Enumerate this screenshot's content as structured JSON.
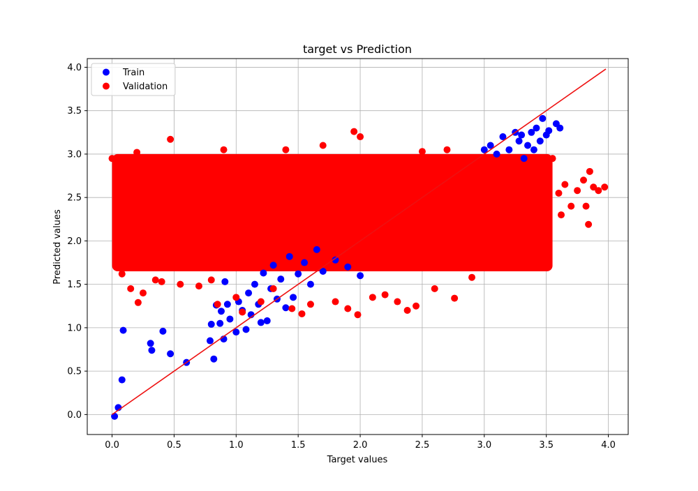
{
  "chart_data": {
    "type": "scatter",
    "title": "target vs Prediction",
    "xlabel": "Target values",
    "ylabel": "Predicted values",
    "xlim": [
      -0.2,
      4.16
    ],
    "ylim": [
      -0.23,
      4.1
    ],
    "x_ticks": [
      0.0,
      0.5,
      1.0,
      1.5,
      2.0,
      2.5,
      3.0,
      3.5,
      4.0
    ],
    "y_ticks": [
      0.0,
      0.5,
      1.0,
      1.5,
      2.0,
      2.5,
      3.0,
      3.5,
      4.0
    ],
    "x_tick_labels": [
      "0.0",
      "0.5",
      "1.0",
      "1.5",
      "2.0",
      "2.5",
      "3.0",
      "3.5",
      "4.0"
    ],
    "y_tick_labels": [
      "0.0",
      "0.5",
      "1.0",
      "1.5",
      "2.0",
      "2.5",
      "3.0",
      "3.5",
      "4.0"
    ],
    "grid": true,
    "legend": {
      "placement": "top-left",
      "entries": [
        "Train",
        "Validation"
      ]
    },
    "series": [
      {
        "name": "Train",
        "color": "#0000ff",
        "points": [
          [
            0.02,
            -0.02
          ],
          [
            0.05,
            0.08
          ],
          [
            0.08,
            0.4
          ],
          [
            0.09,
            0.97
          ],
          [
            0.31,
            0.82
          ],
          [
            0.32,
            0.74
          ],
          [
            0.41,
            0.96
          ],
          [
            0.47,
            0.7
          ],
          [
            0.6,
            0.6
          ],
          [
            0.79,
            0.85
          ],
          [
            0.8,
            1.04
          ],
          [
            0.82,
            0.64
          ],
          [
            0.84,
            1.26
          ],
          [
            0.87,
            1.05
          ],
          [
            0.88,
            1.19
          ],
          [
            0.9,
            0.87
          ],
          [
            0.91,
            1.53
          ],
          [
            0.93,
            1.27
          ],
          [
            0.95,
            1.1
          ],
          [
            1.0,
            0.95
          ],
          [
            1.02,
            1.3
          ],
          [
            1.05,
            1.2
          ],
          [
            1.08,
            0.98
          ],
          [
            1.1,
            1.4
          ],
          [
            1.12,
            1.15
          ],
          [
            1.15,
            1.5
          ],
          [
            1.18,
            1.27
          ],
          [
            1.2,
            1.06
          ],
          [
            1.22,
            1.63
          ],
          [
            1.25,
            1.08
          ],
          [
            1.28,
            1.45
          ],
          [
            1.3,
            1.72
          ],
          [
            1.33,
            1.33
          ],
          [
            1.36,
            1.56
          ],
          [
            1.4,
            1.23
          ],
          [
            1.43,
            1.82
          ],
          [
            1.46,
            1.35
          ],
          [
            1.5,
            1.62
          ],
          [
            1.55,
            1.75
          ],
          [
            1.6,
            1.5
          ],
          [
            1.65,
            1.9
          ],
          [
            1.7,
            1.65
          ],
          [
            1.8,
            1.78
          ],
          [
            1.9,
            1.7
          ],
          [
            2.0,
            1.6
          ],
          [
            3.0,
            3.05
          ],
          [
            3.05,
            3.1
          ],
          [
            3.1,
            3.0
          ],
          [
            3.15,
            3.2
          ],
          [
            3.2,
            3.05
          ],
          [
            3.25,
            3.25
          ],
          [
            3.28,
            3.15
          ],
          [
            3.3,
            3.22
          ],
          [
            3.32,
            2.95
          ],
          [
            3.35,
            3.1
          ],
          [
            3.38,
            3.25
          ],
          [
            3.4,
            3.05
          ],
          [
            3.42,
            3.3
          ],
          [
            3.45,
            3.15
          ],
          [
            3.47,
            3.41
          ],
          [
            3.5,
            3.22
          ],
          [
            3.52,
            3.27
          ],
          [
            3.58,
            3.35
          ],
          [
            3.61,
            3.3
          ]
        ]
      },
      {
        "name": "Validation",
        "color": "#ff0000",
        "points": [
          [
            0.0,
            2.95
          ],
          [
            0.05,
            2.1
          ],
          [
            0.08,
            1.62
          ],
          [
            0.1,
            2.5
          ],
          [
            0.15,
            1.45
          ],
          [
            0.2,
            3.02
          ],
          [
            0.21,
            1.29
          ],
          [
            0.25,
            1.4
          ],
          [
            0.3,
            2.8
          ],
          [
            0.35,
            1.55
          ],
          [
            0.4,
            1.53
          ],
          [
            0.45,
            2.3
          ],
          [
            0.47,
            3.17
          ],
          [
            0.55,
            1.5
          ],
          [
            0.6,
            2.85
          ],
          [
            0.7,
            1.48
          ],
          [
            0.8,
            1.55
          ],
          [
            0.85,
            1.27
          ],
          [
            0.9,
            3.05
          ],
          [
            1.0,
            1.35
          ],
          [
            1.05,
            1.18
          ],
          [
            1.1,
            2.9
          ],
          [
            1.2,
            1.3
          ],
          [
            1.3,
            1.45
          ],
          [
            1.4,
            3.05
          ],
          [
            1.45,
            1.22
          ],
          [
            1.53,
            1.16
          ],
          [
            1.6,
            1.27
          ],
          [
            1.7,
            3.1
          ],
          [
            1.8,
            1.3
          ],
          [
            1.9,
            1.22
          ],
          [
            1.95,
            3.26
          ],
          [
            1.98,
            1.15
          ],
          [
            2.0,
            3.2
          ],
          [
            2.1,
            1.35
          ],
          [
            2.2,
            1.38
          ],
          [
            2.3,
            1.3
          ],
          [
            2.38,
            1.2
          ],
          [
            2.45,
            1.25
          ],
          [
            2.5,
            3.03
          ],
          [
            2.6,
            1.45
          ],
          [
            2.7,
            3.05
          ],
          [
            2.76,
            1.34
          ],
          [
            2.9,
            1.58
          ],
          [
            3.0,
            2.75
          ],
          [
            3.1,
            1.9
          ],
          [
            3.2,
            1.8
          ],
          [
            3.3,
            1.72
          ],
          [
            3.4,
            2.7
          ],
          [
            3.5,
            2.48
          ],
          [
            3.55,
            2.95
          ],
          [
            3.6,
            2.55
          ],
          [
            3.62,
            2.3
          ],
          [
            3.65,
            2.65
          ],
          [
            3.7,
            2.4
          ],
          [
            3.75,
            2.58
          ],
          [
            3.8,
            2.7
          ],
          [
            3.82,
            2.4
          ],
          [
            3.84,
            2.19
          ],
          [
            3.85,
            2.8
          ],
          [
            3.88,
            2.62
          ],
          [
            3.92,
            2.58
          ],
          [
            3.97,
            2.62
          ]
        ]
      }
    ],
    "dense_region": {
      "series": "Validation",
      "x_range": [
        0.0,
        3.55
      ],
      "y_range": [
        1.65,
        3.0
      ]
    },
    "reference_line": {
      "color": "#ee1111",
      "from": [
        0.0,
        0.0
      ],
      "to": [
        3.98,
        3.98
      ]
    }
  }
}
